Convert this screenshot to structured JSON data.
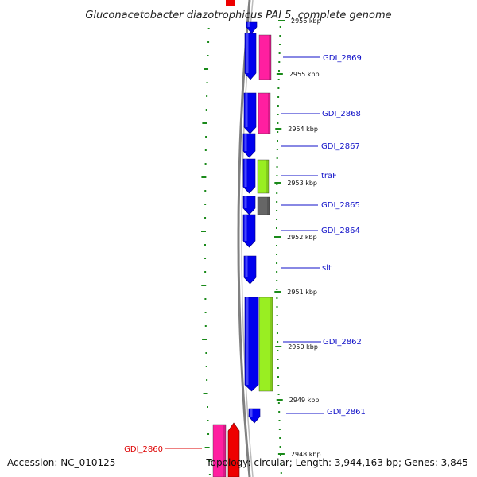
{
  "title": "Gluconacetobacter diazotrophicus PAI 5, complete genome",
  "footer": {
    "accession": "Accession: NC_010125",
    "summary": "Topology: circular; Length: 3,944,163 bp; Genes: 3,845"
  },
  "colors": {
    "backbone": "#808080",
    "ruler_tick": "#1a8a1a",
    "forward_cds": "#0000ee",
    "pink_feature": "#ff1fa0",
    "lime_feature": "#99ee22",
    "gray_feature": "#666666",
    "red_feature": "#ee0000",
    "label_blue": "#1010c8",
    "label_red": "#dd0000"
  },
  "ticks": [
    {
      "label": "2956 kbp"
    },
    {
      "label": "2955 kbp"
    },
    {
      "label": "2954 kbp"
    },
    {
      "label": "2953 kbp"
    },
    {
      "label": "2952 kbp"
    },
    {
      "label": "2951 kbp"
    },
    {
      "label": "2950 kbp"
    },
    {
      "label": "2949 kbp"
    },
    {
      "label": "2948 kbp"
    }
  ],
  "genes": [
    {
      "label": "GDI_2869",
      "color": "label_blue"
    },
    {
      "label": "GDI_2868",
      "color": "label_blue"
    },
    {
      "label": "GDI_2867",
      "color": "label_blue"
    },
    {
      "label": "traF",
      "color": "label_blue"
    },
    {
      "label": "GDI_2865",
      "color": "label_blue"
    },
    {
      "label": "GDI_2864",
      "color": "label_blue"
    },
    {
      "label": "slt",
      "color": "label_blue"
    },
    {
      "label": "GDI_2862",
      "color": "label_blue"
    },
    {
      "label": "GDI_2861",
      "color": "label_blue"
    },
    {
      "label": "GDI_2860",
      "color": "label_red"
    }
  ]
}
